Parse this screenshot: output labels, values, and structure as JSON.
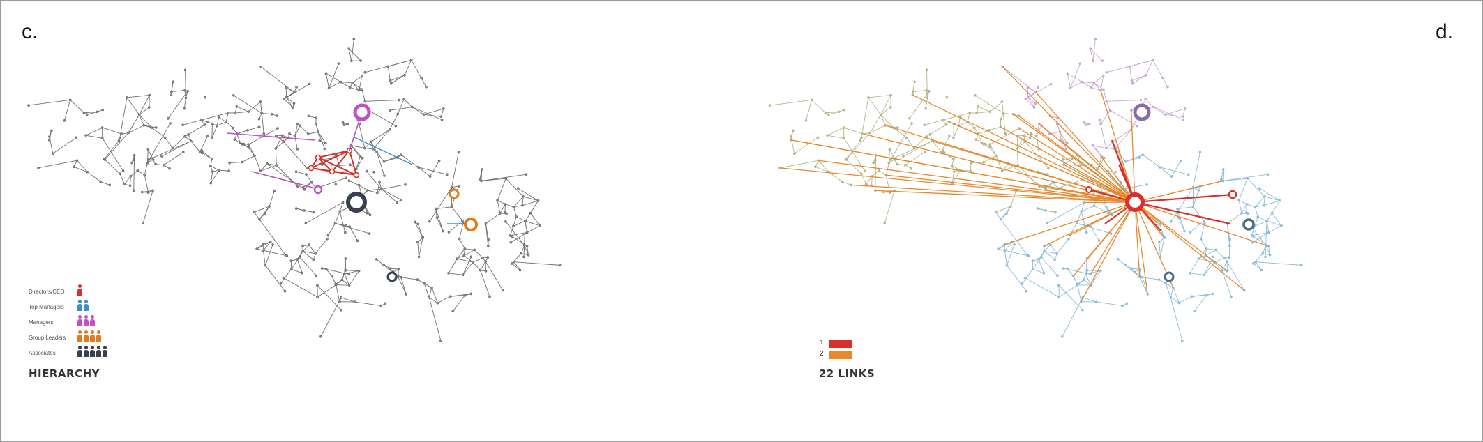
{
  "panels": {
    "c": {
      "letter": "c."
    },
    "d": {
      "letter": "d."
    }
  },
  "legend_c": {
    "title": "HIERARCHY",
    "rows": [
      {
        "label": "Directors/CEO",
        "count": 1,
        "color": "#d9302c"
      },
      {
        "label": "Top Managers",
        "count": 2,
        "color": "#3b8fd0"
      },
      {
        "label": "Managers",
        "count": 3,
        "color": "#c24fc4"
      },
      {
        "label": "Group Leaders",
        "count": 4,
        "color": "#e07b1f"
      },
      {
        "label": "Associates",
        "count": 5,
        "color": "#3a4050"
      }
    ]
  },
  "legend_d": {
    "title": "22 LINKS",
    "items": [
      {
        "label": "1",
        "color": "#d9302c"
      },
      {
        "label": "2",
        "color": "#e8882b"
      }
    ]
  },
  "colors": {
    "edge_gray": "#6f6f6f",
    "director": "#d9302c",
    "top_manager": "#3b8fd0",
    "manager": "#c24fc4",
    "group_leader": "#e07b1f",
    "associate": "#3a4050",
    "link1": "#d9302c",
    "link2": "#e8882b",
    "cluster_olive": "#b5b58a",
    "cluster_blue": "#8bbcd8",
    "cluster_purple": "#c9a6d6"
  }
}
